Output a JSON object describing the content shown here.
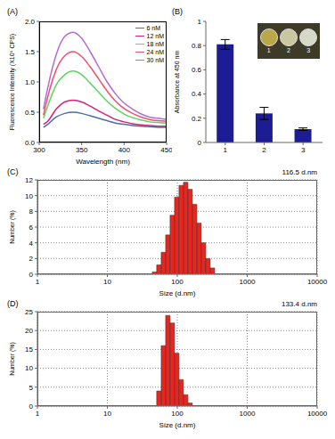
{
  "chart_data": [
    {
      "type": "line",
      "title": "(A)",
      "x_label": "Wavelength (nm)",
      "y_label": "Fluorescence Intensity (X10⁶ CPS)",
      "x": [
        305,
        310,
        320,
        330,
        340,
        350,
        360,
        370,
        380,
        390,
        400,
        410,
        420,
        430,
        440,
        450
      ],
      "series": [
        {
          "name": "6 nM",
          "color": "#4a6fa5",
          "values": [
            0.25,
            0.3,
            0.42,
            0.48,
            0.5,
            0.48,
            0.44,
            0.4,
            0.36,
            0.32,
            0.3,
            0.28,
            0.27,
            0.26,
            0.25,
            0.25
          ]
        },
        {
          "name": "12 nM",
          "color": "#d6227a",
          "values": [
            0.3,
            0.35,
            0.55,
            0.67,
            0.7,
            0.67,
            0.6,
            0.52,
            0.45,
            0.38,
            0.34,
            0.31,
            0.29,
            0.28,
            0.27,
            0.27
          ]
        },
        {
          "name": "18 nM",
          "color": "#5ed35e",
          "values": [
            0.4,
            0.6,
            0.95,
            1.12,
            1.18,
            1.12,
            0.98,
            0.83,
            0.68,
            0.56,
            0.47,
            0.41,
            0.37,
            0.34,
            0.33,
            0.32
          ]
        },
        {
          "name": "24 nM",
          "color": "#f0506e",
          "values": [
            0.45,
            0.75,
            1.2,
            1.43,
            1.5,
            1.42,
            1.25,
            1.05,
            0.85,
            0.68,
            0.56,
            0.48,
            0.42,
            0.38,
            0.36,
            0.35
          ]
        },
        {
          "name": "30 nM",
          "color": "#b56bd6",
          "values": [
            0.55,
            0.9,
            1.45,
            1.75,
            1.82,
            1.72,
            1.5,
            1.25,
            1.0,
            0.8,
            0.65,
            0.55,
            0.47,
            0.42,
            0.4,
            0.38
          ]
        }
      ],
      "xlim": [
        300,
        450
      ],
      "xticks": [
        300,
        350,
        400,
        450
      ],
      "ylim": [
        0,
        2
      ],
      "yticks": [
        {
          "value": 0,
          "label": "0.0"
        },
        {
          "value": 0.5,
          "label": "0.5"
        },
        {
          "value": 1,
          "label": "1.0"
        },
        {
          "value": 1.5,
          "label": "1.5"
        },
        {
          "value": 2,
          "label": "2.0"
        }
      ],
      "legend": "upper right",
      "grid": false
    },
    {
      "type": "bar",
      "title": "(B)",
      "y_label": "Absorbance at 450 nm",
      "categories": [
        "1",
        "2",
        "3"
      ],
      "values": [
        0.81,
        0.24,
        0.11
      ],
      "errors": [
        0.04,
        0.05,
        0.01
      ],
      "color": "#1c1c94",
      "ylim": [
        0,
        1
      ],
      "yticks": [
        0,
        0.2,
        0.4,
        0.6,
        0.8,
        1
      ],
      "grid": false
    },
    {
      "type": "histogram",
      "title": "(C)",
      "x_label": "Size (d.nm)",
      "y_label": "Number (%)",
      "annotations": [
        "116.5 d.nm"
      ],
      "bins": [
        43.8,
        50.7,
        58.8,
        68.1,
        78.8,
        91.3,
        105.7,
        122.4,
        141.8,
        164.2,
        190.1,
        220.2,
        255,
        295.3,
        342
      ],
      "values": [
        0.3,
        1.2,
        2.8,
        5,
        7.5,
        9.8,
        11.3,
        11.7,
        10.8,
        8.9,
        6.5,
        4,
        2,
        0.8
      ],
      "color": "#e8251f",
      "log": "x",
      "xlim": [
        1,
        10000
      ],
      "xticks": [
        1,
        10,
        100,
        1000,
        10000
      ],
      "ylim": [
        0,
        12
      ],
      "yticks": [
        0,
        2,
        4,
        6,
        8,
        10,
        12
      ],
      "grid": true
    },
    {
      "type": "histogram",
      "title": "(D)",
      "x_label": "Size (d.nm)",
      "y_label": "Number (%)",
      "annotations": [
        "133.4 d.nm"
      ],
      "bins": [
        50.7,
        58.8,
        68.1,
        78.8,
        91.3,
        105.7,
        122.4,
        141.8,
        164.2
      ],
      "values": [
        4,
        16,
        24,
        22,
        14,
        7,
        3,
        0.8
      ],
      "color": "#e8251f",
      "log": "x",
      "xlim": [
        1,
        10000
      ],
      "xticks": [
        1,
        10,
        100,
        1000,
        10000
      ],
      "ylim": [
        0,
        25
      ],
      "yticks": [
        0,
        5,
        10,
        15,
        20,
        25
      ],
      "grid": true
    }
  ]
}
